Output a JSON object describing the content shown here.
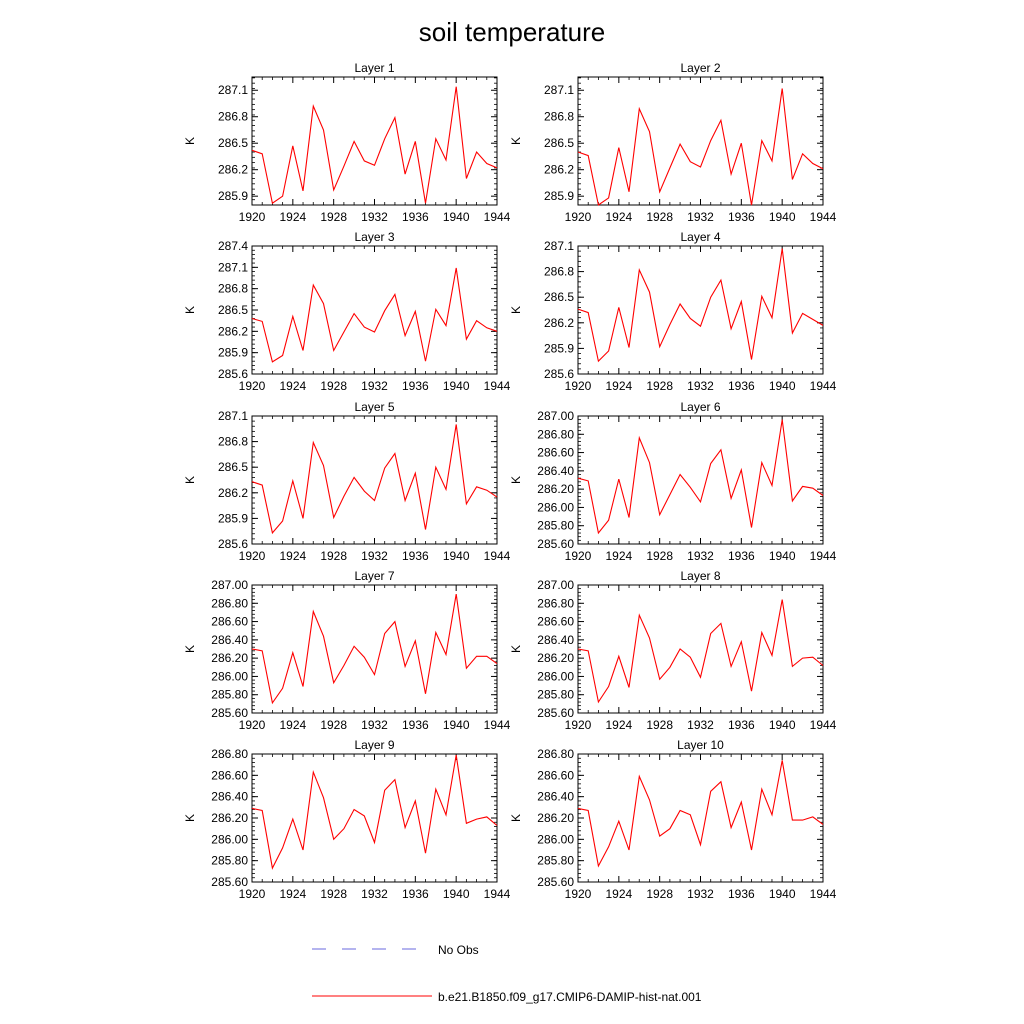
{
  "title": "soil temperature",
  "chart_data": {
    "type": "line",
    "x": [
      1920,
      1921,
      1922,
      1923,
      1924,
      1925,
      1926,
      1927,
      1928,
      1929,
      1930,
      1931,
      1932,
      1933,
      1934,
      1935,
      1936,
      1937,
      1938,
      1939,
      1940,
      1941,
      1942,
      1943,
      1944
    ],
    "xticks": [
      1920,
      1924,
      1928,
      1932,
      1936,
      1940,
      1944
    ],
    "xlim": [
      1920,
      1944
    ],
    "ylabel": "K",
    "line_color": "#ff0000",
    "panels": [
      {
        "title": "Layer 1",
        "ylim": [
          285.8,
          287.25
        ],
        "yticks": [
          "285.9",
          "286.2",
          "286.5",
          "286.8",
          "287.1"
        ],
        "values": [
          286.42,
          286.38,
          285.82,
          285.9,
          286.47,
          285.96,
          286.92,
          286.65,
          285.97,
          286.24,
          286.52,
          286.3,
          286.25,
          286.55,
          286.79,
          286.15,
          286.52,
          285.82,
          286.55,
          286.31,
          287.14,
          286.1,
          286.4,
          286.27,
          286.22
        ]
      },
      {
        "title": "Layer 2",
        "ylim": [
          285.8,
          287.25
        ],
        "yticks": [
          "285.9",
          "286.2",
          "286.5",
          "286.8",
          "287.1"
        ],
        "values": [
          286.4,
          286.36,
          285.8,
          285.88,
          286.45,
          285.95,
          286.89,
          286.63,
          285.95,
          286.22,
          286.49,
          286.29,
          286.23,
          286.53,
          286.76,
          286.15,
          286.5,
          285.8,
          286.53,
          286.3,
          287.12,
          286.09,
          286.38,
          286.27,
          286.21
        ]
      },
      {
        "title": "Layer 3",
        "ylim": [
          285.6,
          287.4
        ],
        "yticks": [
          "285.6",
          "285.9",
          "286.2",
          "286.5",
          "286.8",
          "287.1",
          "287.4"
        ],
        "values": [
          286.38,
          286.34,
          285.77,
          285.86,
          286.41,
          285.93,
          286.85,
          286.59,
          285.93,
          286.19,
          286.45,
          286.26,
          286.19,
          286.49,
          286.72,
          286.14,
          286.48,
          285.78,
          286.51,
          286.28,
          287.09,
          286.09,
          286.35,
          286.25,
          286.2
        ]
      },
      {
        "title": "Layer 4",
        "ylim": [
          285.6,
          287.1
        ],
        "yticks": [
          "285.6",
          "285.9",
          "286.2",
          "286.5",
          "286.8",
          "287.1"
        ],
        "values": [
          286.36,
          286.32,
          285.75,
          285.87,
          286.38,
          285.91,
          286.82,
          286.56,
          285.92,
          286.18,
          286.42,
          286.25,
          286.16,
          286.5,
          286.7,
          286.13,
          286.45,
          285.77,
          286.51,
          286.26,
          287.07,
          286.08,
          286.31,
          286.24,
          286.17
        ]
      },
      {
        "title": "Layer 5",
        "ylim": [
          285.6,
          287.1
        ],
        "yticks": [
          "285.6",
          "285.9",
          "286.2",
          "286.5",
          "286.8",
          "287.1"
        ],
        "values": [
          286.33,
          286.29,
          285.73,
          285.87,
          286.34,
          285.9,
          286.79,
          286.52,
          285.91,
          286.16,
          286.38,
          286.22,
          286.11,
          286.49,
          286.66,
          286.11,
          286.43,
          285.77,
          286.5,
          286.24,
          287.0,
          286.07,
          286.27,
          286.23,
          286.15
        ]
      },
      {
        "title": "Layer 6",
        "ylim": [
          285.6,
          287.0
        ],
        "yticks": [
          "285.60",
          "285.80",
          "286.00",
          "286.20",
          "286.40",
          "286.60",
          "286.80",
          "287.00"
        ],
        "values": [
          286.32,
          286.29,
          285.72,
          285.86,
          286.31,
          285.89,
          286.76,
          286.49,
          285.92,
          286.14,
          286.36,
          286.22,
          286.06,
          286.48,
          286.63,
          286.1,
          286.41,
          285.78,
          286.49,
          286.24,
          286.96,
          286.07,
          286.23,
          286.21,
          286.13
        ]
      },
      {
        "title": "Layer 7",
        "ylim": [
          285.6,
          287.0
        ],
        "yticks": [
          "285.60",
          "285.80",
          "286.00",
          "286.20",
          "286.40",
          "286.60",
          "286.80",
          "287.00"
        ],
        "values": [
          286.3,
          286.28,
          285.71,
          285.87,
          286.26,
          285.89,
          286.71,
          286.44,
          285.93,
          286.12,
          286.33,
          286.21,
          286.02,
          286.47,
          286.6,
          286.11,
          286.39,
          285.81,
          286.48,
          286.24,
          286.9,
          286.09,
          286.22,
          286.22,
          286.14
        ]
      },
      {
        "title": "Layer 8",
        "ylim": [
          285.6,
          287.0
        ],
        "yticks": [
          "285.60",
          "285.80",
          "286.00",
          "286.20",
          "286.40",
          "286.60",
          "286.80",
          "287.00"
        ],
        "values": [
          286.3,
          286.28,
          285.72,
          285.89,
          286.22,
          285.88,
          286.67,
          286.42,
          285.97,
          286.1,
          286.3,
          286.21,
          285.99,
          286.47,
          286.58,
          286.11,
          286.38,
          285.84,
          286.48,
          286.23,
          286.84,
          286.11,
          286.2,
          286.21,
          286.12
        ]
      },
      {
        "title": "Layer 9",
        "ylim": [
          285.6,
          286.8
        ],
        "yticks": [
          "285.60",
          "285.80",
          "286.00",
          "286.20",
          "286.40",
          "286.60",
          "286.80"
        ],
        "values": [
          286.29,
          286.27,
          285.73,
          285.92,
          286.19,
          285.9,
          286.63,
          286.39,
          286.0,
          286.1,
          286.28,
          286.22,
          285.97,
          286.46,
          286.56,
          286.11,
          286.36,
          285.87,
          286.47,
          286.23,
          286.79,
          286.15,
          286.19,
          286.21,
          286.13
        ]
      },
      {
        "title": "Layer 10",
        "ylim": [
          285.6,
          286.8
        ],
        "yticks": [
          "285.60",
          "285.80",
          "286.00",
          "286.20",
          "286.40",
          "286.60",
          "286.80"
        ],
        "values": [
          286.29,
          286.27,
          285.75,
          285.93,
          286.17,
          285.9,
          286.59,
          286.37,
          286.03,
          286.1,
          286.27,
          286.23,
          285.95,
          286.45,
          286.54,
          286.11,
          286.35,
          285.9,
          286.47,
          286.23,
          286.74,
          286.18,
          286.18,
          286.21,
          286.14
        ]
      }
    ]
  },
  "legend": {
    "entries": [
      {
        "label": "No Obs",
        "color": "#6a6adf",
        "dash": true
      },
      {
        "label": "b.e21.B1850.f09_g17.CMIP6-DAMIP-hist-nat.001",
        "color": "#ff0000",
        "dash": false
      }
    ]
  }
}
